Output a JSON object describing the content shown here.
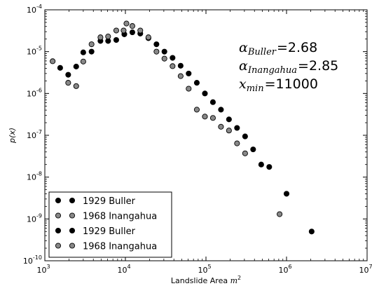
{
  "chart_data": {
    "type": "scatter",
    "title": "",
    "xlabel": "Landslide Area",
    "xlabel_unit": "m",
    "xlabel_unit_exp": "2",
    "ylabel": "p(x)",
    "xscale": "log",
    "yscale": "log",
    "xlim": [
      1000,
      10000000
    ],
    "ylim": [
      1e-10,
      0.0001
    ],
    "x_tick_labels": [
      {
        "base": "10",
        "exp": "3"
      },
      {
        "base": "10",
        "exp": "4"
      },
      {
        "base": "10",
        "exp": "5"
      },
      {
        "base": "10",
        "exp": "6"
      },
      {
        "base": "10",
        "exp": "7"
      }
    ],
    "y_tick_labels": [
      {
        "base": "10",
        "exp": "-10"
      },
      {
        "base": "10",
        "exp": "-9"
      },
      {
        "base": "10",
        "exp": "-8"
      },
      {
        "base": "10",
        "exp": "-7"
      },
      {
        "base": "10",
        "exp": "-6"
      },
      {
        "base": "10",
        "exp": "-5"
      },
      {
        "base": "10",
        "exp": "-4"
      }
    ],
    "grid": false,
    "legend_position": "lower-left",
    "series": [
      {
        "name": "1929 Buller",
        "color": "#000000",
        "points": [
          [
            1550,
            4.1e-06
          ],
          [
            1950,
            2.8e-06
          ],
          [
            2450,
            4.4e-06
          ],
          [
            3000,
            9.6e-06
          ],
          [
            3800,
            1e-05
          ],
          [
            4900,
            1.8e-05
          ],
          [
            6100,
            1.8e-05
          ],
          [
            7700,
            1.9e-05
          ],
          [
            9700,
            2.6e-05
          ],
          [
            12200,
            2.9e-05
          ],
          [
            15300,
            2.7e-05
          ],
          [
            19300,
            2.1e-05
          ],
          [
            24300,
            1.5e-05
          ],
          [
            30500,
            1e-05
          ],
          [
            38500,
            7.1e-06
          ],
          [
            48500,
            4.6e-06
          ],
          [
            61000,
            3e-06
          ],
          [
            77000,
            1.8e-06
          ],
          [
            97000,
            1e-06
          ],
          [
            122000,
            6.2e-07
          ],
          [
            153500,
            4.1e-07
          ],
          [
            193000,
            2.4e-07
          ],
          [
            243000,
            1.5e-07
          ],
          [
            306000,
            9.4e-08
          ],
          [
            385000,
            4.6e-08
          ],
          [
            485000,
            2e-08
          ],
          [
            610000,
            1.75e-08
          ],
          [
            1000000,
            4e-09
          ],
          [
            2050000,
            5e-10
          ]
        ]
      },
      {
        "name": "1968 Inangahua",
        "color": "#888888",
        "points": [
          [
            1250,
            5.9e-06
          ],
          [
            1950,
            1.8e-06
          ],
          [
            2450,
            1.5e-06
          ],
          [
            3000,
            5.8e-06
          ],
          [
            3800,
            1.5e-05
          ],
          [
            4900,
            2.2e-05
          ],
          [
            6100,
            2.3e-05
          ],
          [
            7700,
            3.2e-05
          ],
          [
            9500,
            3.2e-05
          ],
          [
            10300,
            4.7e-05
          ],
          [
            12200,
            4.1e-05
          ],
          [
            15300,
            3.2e-05
          ],
          [
            19300,
            2.2e-05
          ],
          [
            24300,
            1e-05
          ],
          [
            30500,
            6.8e-06
          ],
          [
            38500,
            4.5e-06
          ],
          [
            48500,
            2.6e-06
          ],
          [
            61000,
            1.3e-06
          ],
          [
            77000,
            4.1e-07
          ],
          [
            97000,
            2.8e-07
          ],
          [
            122000,
            2.6e-07
          ],
          [
            153500,
            1.6e-07
          ],
          [
            193000,
            1.3e-07
          ],
          [
            243000,
            6.4e-08
          ],
          [
            306000,
            3.7e-08
          ],
          [
            820000,
            1.3e-09
          ]
        ]
      }
    ],
    "legend_entries": [
      {
        "label": "1929 Buller",
        "color": "#000000"
      },
      {
        "label": "1968 Inangahua",
        "color": "#888888"
      },
      {
        "label": "1929 Buller",
        "color": "#000000"
      },
      {
        "label": "1968 Inangahua",
        "color": "#888888"
      }
    ],
    "annotations": [
      {
        "symbol": "α",
        "sub": "Buller",
        "op": "=",
        "value": "2.68"
      },
      {
        "symbol": "α",
        "sub": "Inangahua",
        "op": "=",
        "value": "2.85"
      },
      {
        "symbol": "x",
        "sub": "min",
        "op": "=",
        "value": "11000"
      }
    ]
  }
}
